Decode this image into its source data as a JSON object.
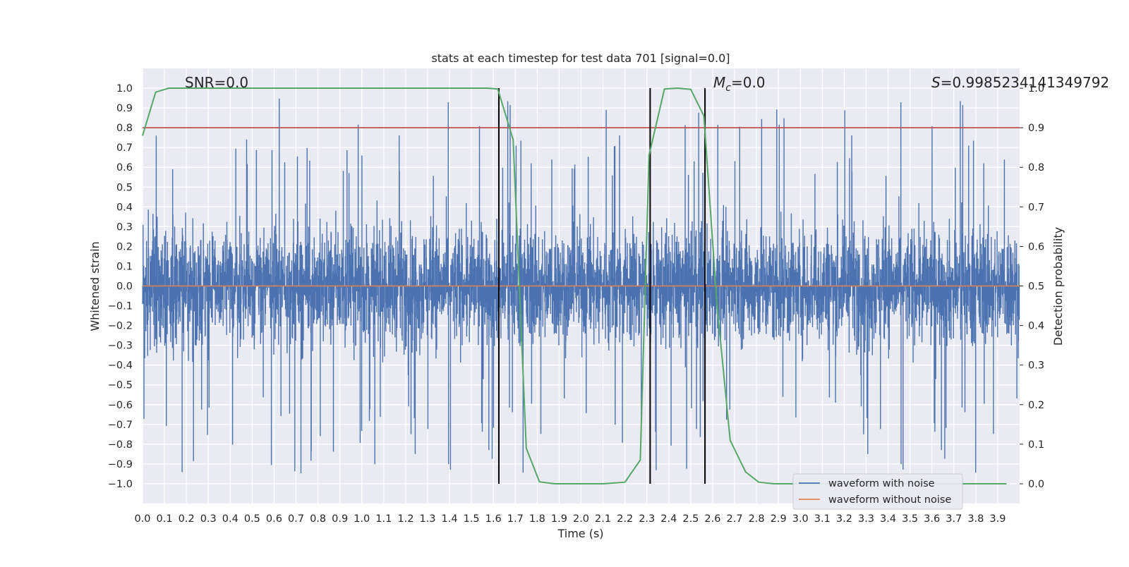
{
  "chart_data": {
    "type": "line",
    "title": "stats at each timestep for test data 701 [signal=0.0]",
    "xlabel": "Time (s)",
    "ylabel": "Whitened strain",
    "y2label": "Detection probability",
    "xlim": [
      0.0,
      4.0
    ],
    "ylim": [
      -1.1,
      1.1
    ],
    "y2lim": [
      -0.05,
      1.05
    ],
    "x_ticks": [
      "0.0",
      "0.1",
      "0.2",
      "0.3",
      "0.4",
      "0.5",
      "0.6",
      "0.7",
      "0.8",
      "0.9",
      "1.0",
      "1.1",
      "1.2",
      "1.3",
      "1.4",
      "1.5",
      "1.6",
      "1.7",
      "1.8",
      "1.9",
      "2.0",
      "2.1",
      "2.2",
      "2.3",
      "2.4",
      "2.5",
      "2.6",
      "2.7",
      "2.8",
      "2.9",
      "3.0",
      "3.1",
      "3.2",
      "3.3",
      "3.4",
      "3.5",
      "3.6",
      "3.7",
      "3.8",
      "3.9"
    ],
    "y_ticks": [
      "1.0",
      "0.9",
      "0.8",
      "0.7",
      "0.6",
      "0.5",
      "0.4",
      "0.3",
      "0.2",
      "0.1",
      "0.0",
      "−0.1",
      "−0.2",
      "−0.3",
      "−0.4",
      "−0.5",
      "−0.6",
      "−0.7",
      "−0.8",
      "−0.9",
      "−1.0"
    ],
    "y2_ticks": [
      "1.0",
      "0.9",
      "0.8",
      "0.7",
      "0.6",
      "0.5",
      "0.4",
      "0.3",
      "0.2",
      "0.1",
      "0.0"
    ],
    "grid": true,
    "legend_position": "lower-right",
    "annotations": {
      "snr": "SNR=0.0",
      "mc_symbol": "M",
      "mc_sub": "c",
      "mc_value": "=0.0",
      "s_symbol": "S",
      "s_value": "=0.9985234141349792"
    },
    "series": [
      {
        "name": "waveform with noise",
        "color": "#4c72b0",
        "kind": "noise",
        "amplitude_range": [
          -1.0,
          1.0
        ]
      },
      {
        "name": "waveform without noise",
        "color": "#dd8452",
        "kind": "flat",
        "value": 0.0
      }
    ],
    "detection_probability": {
      "color": "#55a868",
      "x": [
        0.0,
        0.06,
        0.12,
        0.2,
        0.4,
        0.8,
        1.2,
        1.57,
        1.62,
        1.69,
        1.75,
        1.81,
        1.88,
        2.0,
        2.1,
        2.2,
        2.27,
        2.31,
        2.38,
        2.44,
        2.5,
        2.56,
        2.62,
        2.68,
        2.75,
        2.81,
        2.88,
        3.0,
        3.5,
        3.94
      ],
      "y": [
        0.88,
        0.99,
        1.0,
        1.0,
        1.0,
        1.0,
        1.0,
        1.0,
        0.998,
        0.87,
        0.09,
        0.005,
        0.0,
        0.0,
        0.0,
        0.004,
        0.06,
        0.83,
        0.998,
        1.0,
        0.997,
        0.93,
        0.45,
        0.11,
        0.03,
        0.004,
        0.0,
        0.0,
        0.0,
        0.0
      ]
    },
    "threshold": {
      "value": 0.9,
      "color": "#c44e52"
    },
    "vertical_lines": {
      "x": [
        1.625,
        2.315,
        2.565
      ],
      "y_range": [
        -1.0,
        1.0
      ],
      "color": "#000000"
    }
  }
}
